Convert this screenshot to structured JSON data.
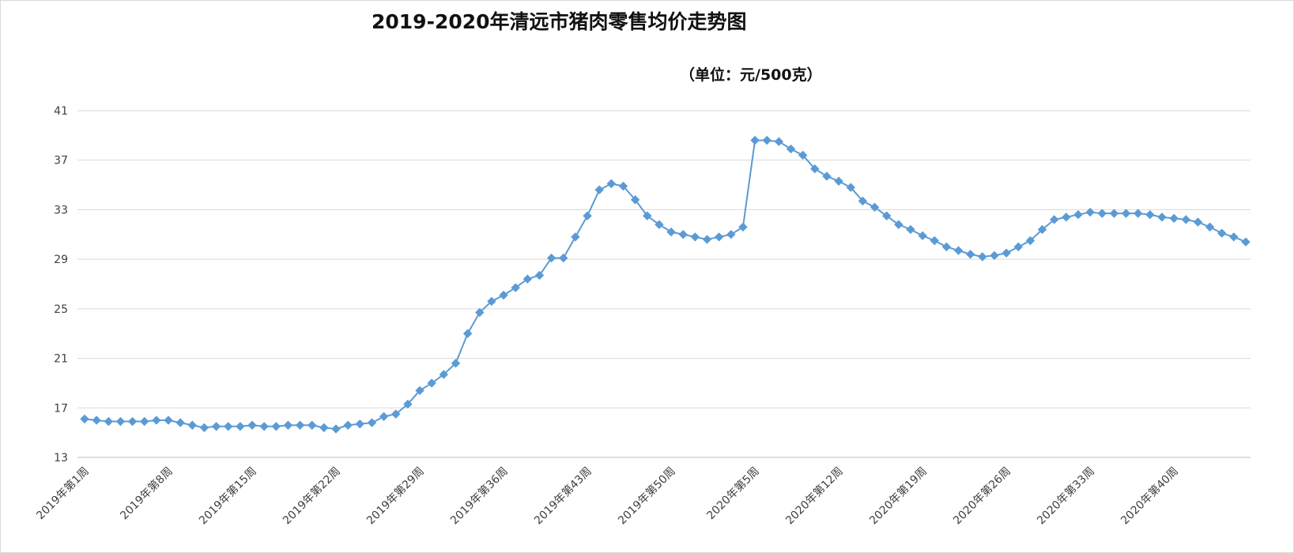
{
  "chart_data": {
    "type": "line",
    "title": "2019-2020年清远市猪肉零售均价走势图",
    "unit_label": "（单位：元/500克）",
    "xlabel": "",
    "ylabel": "",
    "ylim": [
      13,
      41
    ],
    "yticks": [
      13,
      17,
      21,
      25,
      29,
      33,
      37,
      41
    ],
    "grid": true,
    "legend": "none",
    "colors": {
      "series": "#5b9bd5",
      "grid": "#d9d9d9",
      "axis": "#bfbfbf"
    },
    "x_tick_labels": [
      {
        "index": 0,
        "label": "2019年第1周"
      },
      {
        "index": 7,
        "label": "2019年第8周"
      },
      {
        "index": 14,
        "label": "2019年第15周"
      },
      {
        "index": 21,
        "label": "2019年第22周"
      },
      {
        "index": 28,
        "label": "2019年第29周"
      },
      {
        "index": 35,
        "label": "2019年第36周"
      },
      {
        "index": 42,
        "label": "2019年第43周"
      },
      {
        "index": 49,
        "label": "2019年第50周"
      },
      {
        "index": 56,
        "label": "2020年第5周"
      },
      {
        "index": 63,
        "label": "2020年第12周"
      },
      {
        "index": 70,
        "label": "2020年第19周"
      },
      {
        "index": 77,
        "label": "2020年第26周"
      },
      {
        "index": 84,
        "label": "2020年第33周"
      },
      {
        "index": 91,
        "label": "2020年第40周"
      }
    ],
    "series": [
      {
        "values": [
          16.1,
          16.0,
          15.9,
          15.9,
          15.9,
          15.9,
          16.0,
          16.0,
          15.8,
          15.6,
          15.4,
          15.5,
          15.5,
          15.5,
          15.6,
          15.5,
          15.5,
          15.6,
          15.6,
          15.6,
          15.4,
          15.3,
          15.6,
          15.7,
          15.8,
          16.3,
          16.5,
          17.3,
          18.4,
          19.0,
          19.7,
          20.6,
          23.0,
          24.7,
          25.6,
          26.1,
          26.7,
          27.4,
          27.7,
          29.1,
          29.1,
          30.8,
          32.5,
          34.6,
          35.1,
          34.9,
          33.8,
          32.5,
          31.8,
          31.2,
          31.0,
          30.8,
          30.6,
          30.8,
          31.0,
          31.6,
          38.6,
          38.6,
          38.5,
          37.9,
          37.4,
          36.3,
          35.7,
          35.3,
          34.8,
          33.7,
          33.2,
          32.5,
          31.8,
          31.4,
          30.9,
          30.5,
          30.0,
          29.7,
          29.4,
          29.2,
          29.3,
          29.5,
          30.0,
          30.5,
          31.4,
          32.2,
          32.4,
          32.6,
          32.8,
          32.7,
          32.7,
          32.7,
          32.7,
          32.6,
          32.4,
          32.3,
          32.2,
          32.0,
          31.6,
          31.1,
          30.8,
          30.4
        ]
      }
    ]
  }
}
